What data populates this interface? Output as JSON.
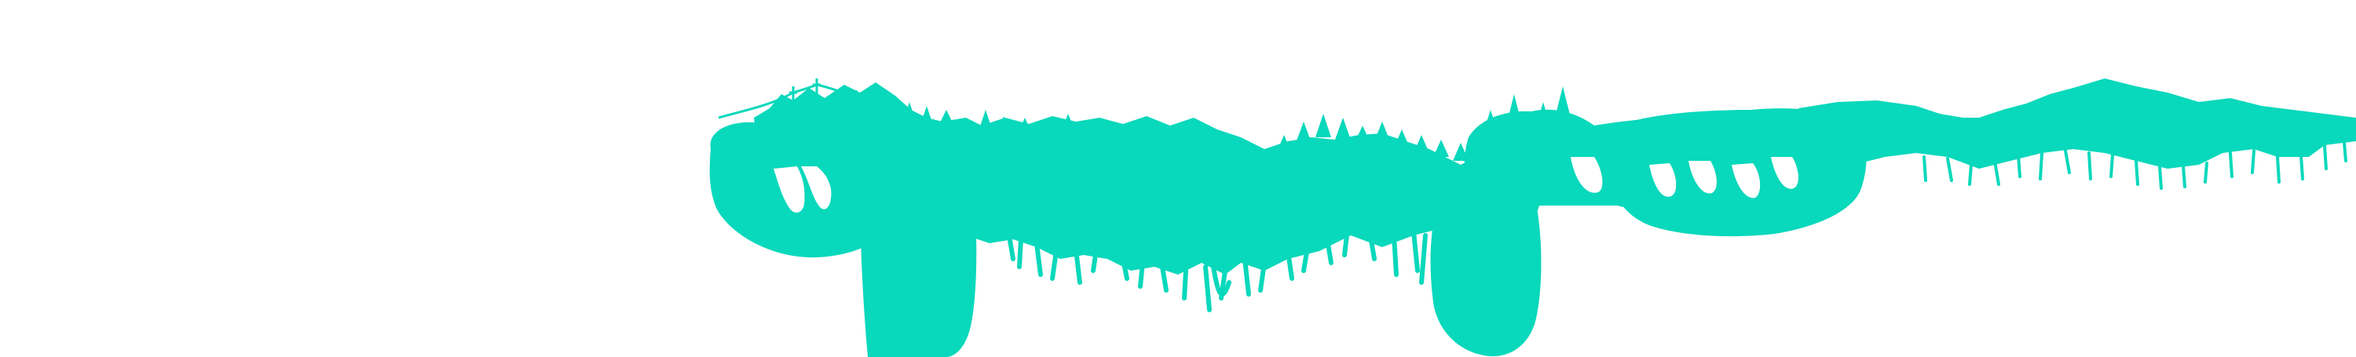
{
  "canvas": {
    "background_color": "#ffffff"
  },
  "artwork": {
    "subject": "brush-stroke-forest-skyline",
    "fill_color": "#08d8bb"
  }
}
